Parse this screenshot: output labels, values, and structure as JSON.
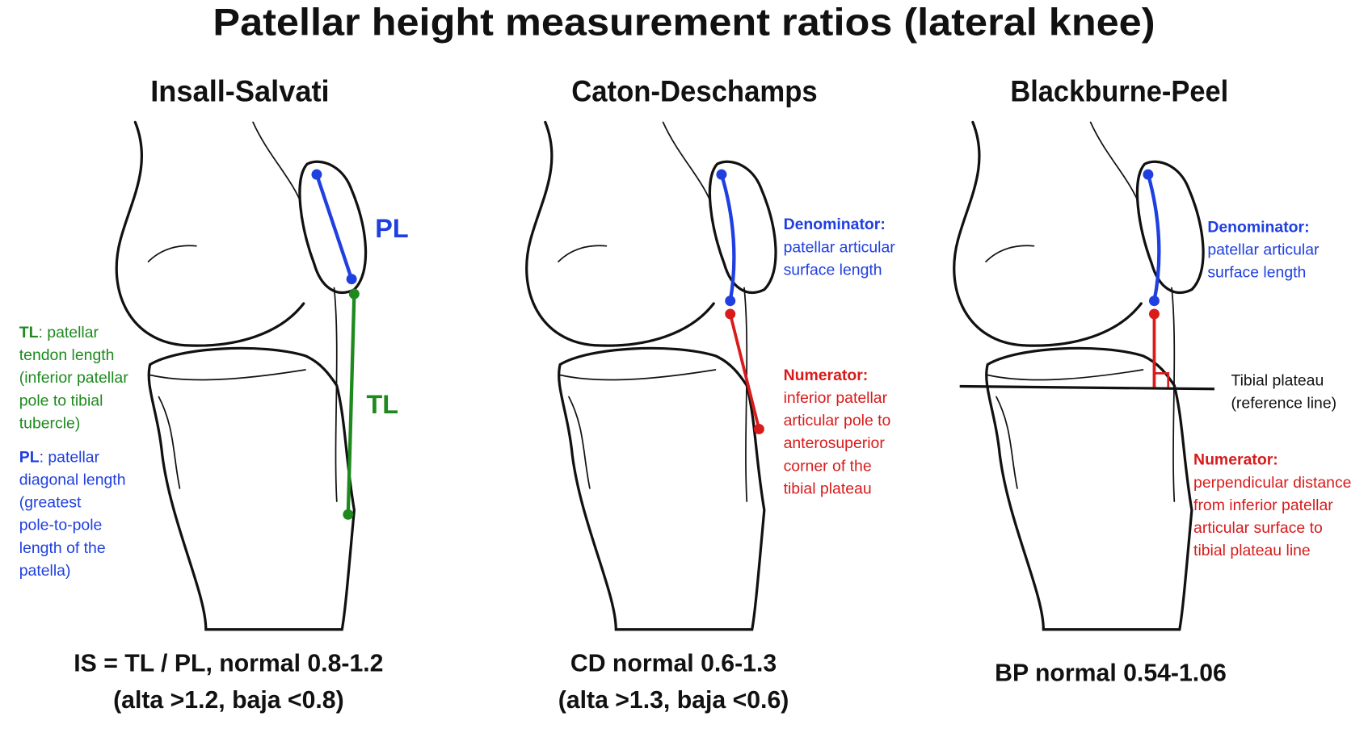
{
  "title": "Patellar height measurement ratios (lateral knee)",
  "panels": [
    {
      "heading": "Insall-Salvati",
      "marks": [
        "PL",
        "TL"
      ],
      "notes": [
        {
          "term": "TL",
          "lines": [
            ": patellar",
            "tendon length",
            "(inferior patellar",
            "pole to tibial",
            "tubercle)"
          ]
        },
        {
          "term": "PL",
          "lines": [
            ": patellar",
            "diagonal length",
            "(greatest",
            "pole-to-pole",
            "length of the",
            "patella)"
          ]
        }
      ],
      "formula": [
        "IS = TL / PL, normal 0.8-1.2",
        "(alta >1.2, baja <0.8)"
      ]
    },
    {
      "heading": "Caton-Deschamps",
      "notes": [
        {
          "lines": [
            "Denominator:",
            "patellar articular",
            "surface length"
          ]
        },
        {
          "lines": [
            "Numerator:",
            "inferior patellar",
            "articular pole to",
            "anterosuperior",
            "corner of the",
            "tibial plateau"
          ]
        }
      ],
      "formula": [
        "CD normal 0.6-1.3",
        "(alta >1.3, baja <0.6)"
      ]
    },
    {
      "heading": "Blackburne-Peel",
      "notes": [
        {
          "lines": [
            "Denominator:",
            "patellar articular",
            "surface length"
          ]
        },
        {
          "lines": [
            "Tibial plateau",
            "(reference line)"
          ]
        },
        {
          "lines": [
            "Numerator:",
            "perpendicular distance",
            "from inferior patellar",
            "articular surface to",
            "tibial plateau line"
          ]
        }
      ],
      "formula": [
        "BP normal 0.54-1.06"
      ]
    }
  ]
}
